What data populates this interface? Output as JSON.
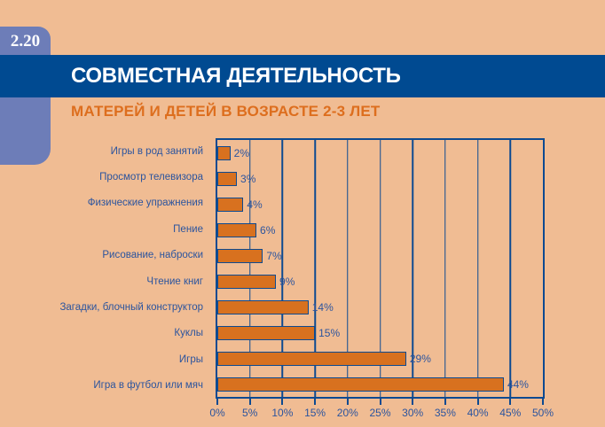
{
  "header": {
    "figure_number": "2.20",
    "title": "СОВМЕСТНАЯ ДЕЯТЕЛЬНОСТЬ",
    "subtitle": "МАТЕРЕЙ И ДЕТЕЙ В ВОЗРАСТЕ 2-3 ЛЕТ"
  },
  "colors": {
    "page_background": "#f0bc93",
    "title_bar_blue": "#004a91",
    "badge_blue": "#6d7db8",
    "bar_fill_orange": "#d8711f",
    "chart_line_blue": "#0d4a91",
    "label_text_blue": "#2b549e",
    "subtitle_orange": "#dd6e1e",
    "title_text": "#ffffff"
  },
  "chart_data": {
    "type": "bar",
    "orientation": "horizontal",
    "title": "СОВМЕСТНАЯ ДЕЯТЕЛЬНОСТЬ МАТЕРЕЙ И ДЕТЕЙ В ВОЗРАСТЕ 2-3 ЛЕТ",
    "categories": [
      "Игры в род занятий",
      "Просмотр телевизора",
      "Физические упражнения",
      "Пение",
      "Рисование, наброски",
      "Чтение книг",
      "Загадки, блочный конструктор",
      "Куклы",
      "Игры",
      "Игра в футбол или мяч"
    ],
    "values": [
      2,
      3,
      4,
      6,
      7,
      9,
      14,
      15,
      29,
      44
    ],
    "value_labels": [
      "2%",
      "3%",
      "4%",
      "6%",
      "7%",
      "9%",
      "14%",
      "15%",
      "29%",
      "44%"
    ],
    "xlim": [
      0,
      50
    ],
    "x_tick_labels": [
      "0%",
      "5%",
      "10%",
      "15%",
      "20%",
      "25%",
      "30%",
      "35%",
      "40%",
      "45%",
      "50%"
    ],
    "grid": "vertical gridlines every 5%",
    "legend": "none"
  }
}
